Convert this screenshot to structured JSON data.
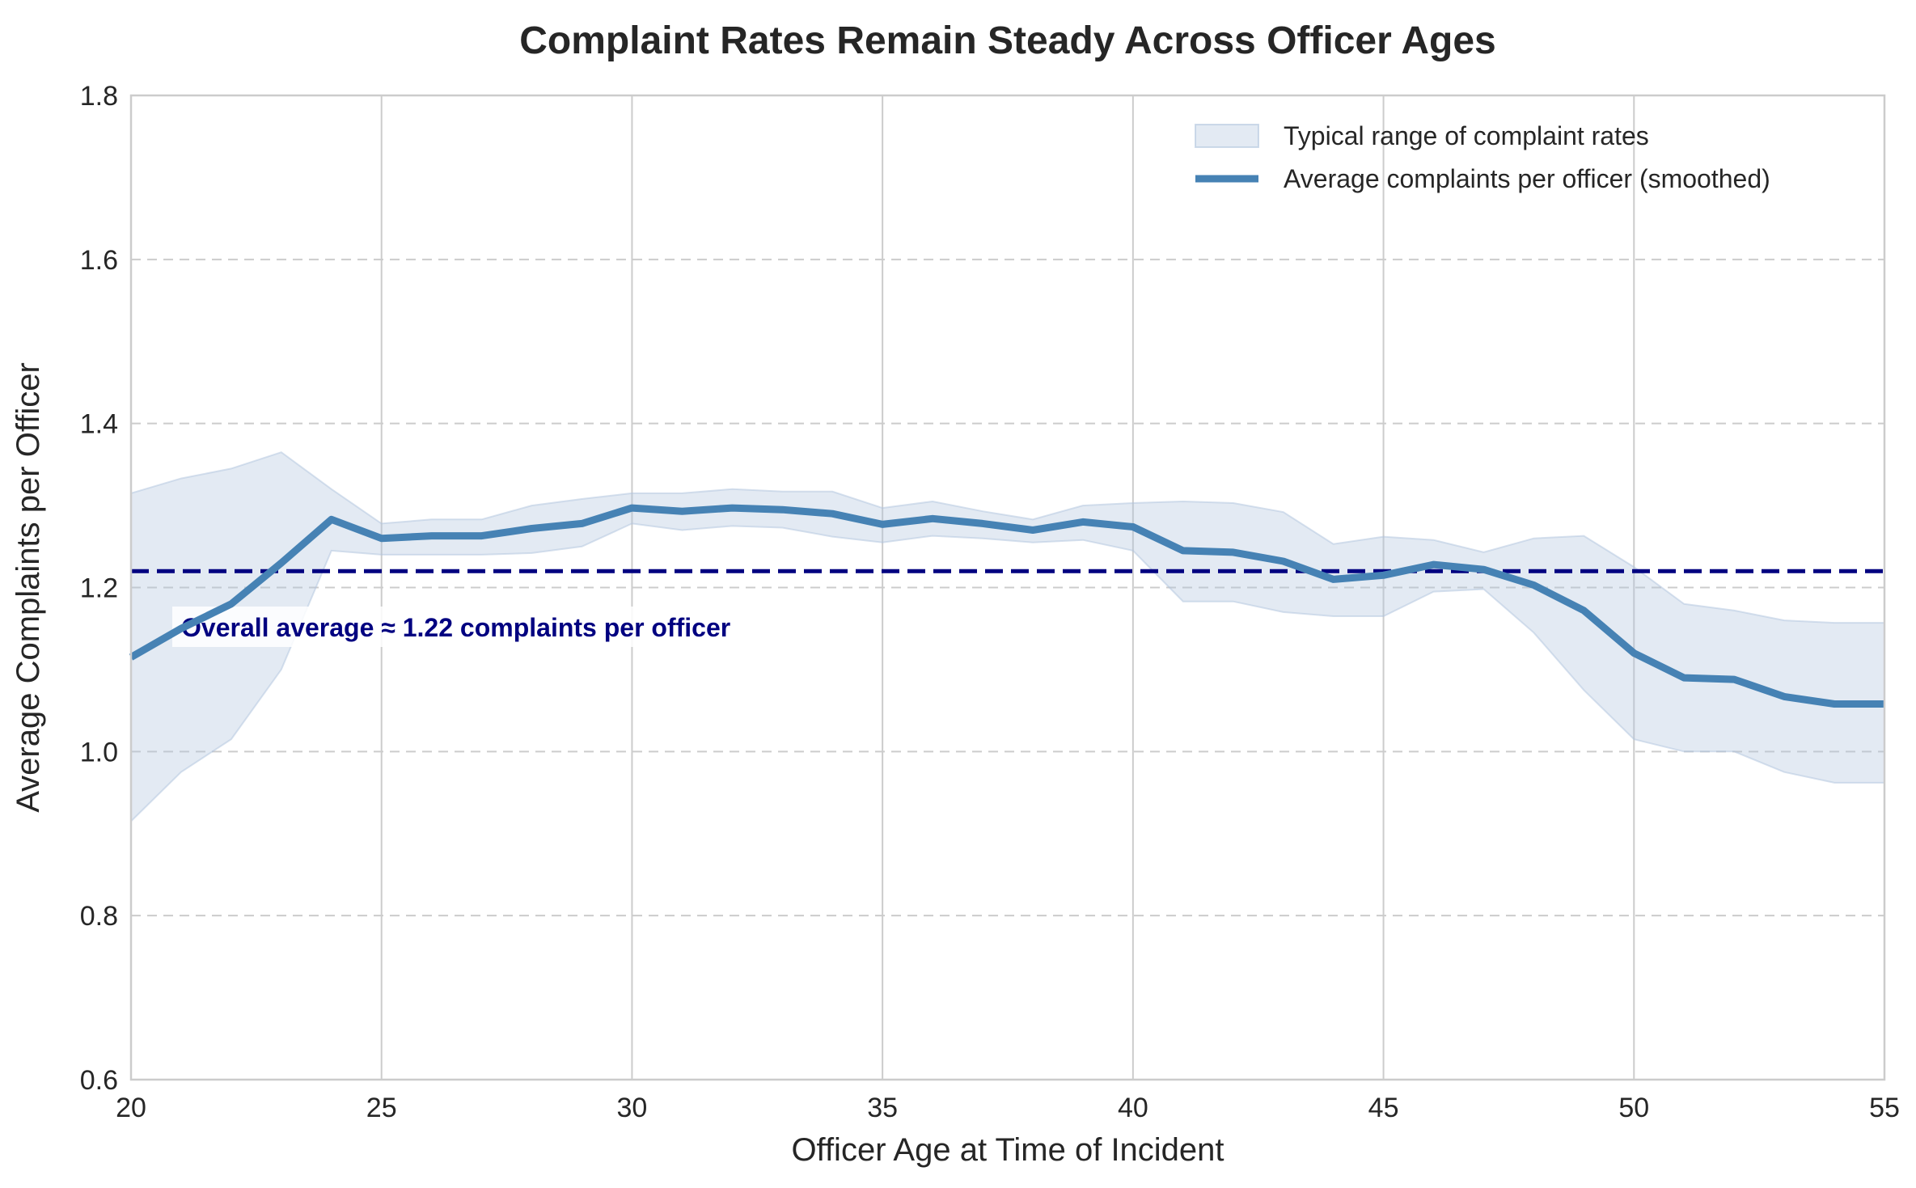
{
  "chart_data": {
    "type": "line",
    "title": "Complaint Rates Remain Steady Across Officer Ages",
    "xlabel": "Officer Age at Time of Incident",
    "ylabel": "Average Complaints per Officer",
    "xlim": [
      20,
      55
    ],
    "ylim": [
      0.6,
      1.8
    ],
    "xticks": [
      20,
      25,
      30,
      35,
      40,
      45,
      50,
      55
    ],
    "yticks": [
      0.6,
      0.8,
      1.0,
      1.2,
      1.4,
      1.6,
      1.8
    ],
    "xtick_labels": [
      "20",
      "25",
      "30",
      "35",
      "40",
      "45",
      "50",
      "55"
    ],
    "ytick_labels": [
      "0.6",
      "0.8",
      "1.0",
      "1.2",
      "1.4",
      "1.6",
      "1.8"
    ],
    "grid": "on",
    "legend_placement": "top-right",
    "legend": [
      "Typical range of complaint rates",
      "Average complaints per officer (smoothed)"
    ],
    "colors": {
      "line": "#4682b4",
      "band": "#b0c4de",
      "reference": "#000080",
      "grid": "#cccccc"
    },
    "x": [
      20,
      21,
      22,
      23,
      24,
      25,
      26,
      27,
      28,
      29,
      30,
      31,
      32,
      33,
      34,
      35,
      36,
      37,
      38,
      39,
      40,
      41,
      42,
      43,
      44,
      45,
      46,
      47,
      48,
      49,
      50,
      51,
      52,
      53,
      54,
      55
    ],
    "series": [
      {
        "name": "Average complaints per officer (smoothed)",
        "values": [
          1.115,
          1.15,
          1.18,
          1.23,
          1.283,
          1.26,
          1.263,
          1.263,
          1.272,
          1.278,
          1.297,
          1.293,
          1.297,
          1.295,
          1.29,
          1.277,
          1.284,
          1.278,
          1.27,
          1.28,
          1.274,
          1.245,
          1.243,
          1.232,
          1.21,
          1.215,
          1.228,
          1.222,
          1.203,
          1.172,
          1.12,
          1.09,
          1.088,
          1.067,
          1.058,
          1.058
        ]
      }
    ],
    "band": {
      "name": "Typical range of complaint rates",
      "lower": [
        0.915,
        0.975,
        1.015,
        1.1,
        1.245,
        1.24,
        1.24,
        1.24,
        1.242,
        1.25,
        1.278,
        1.27,
        1.275,
        1.273,
        1.262,
        1.255,
        1.263,
        1.26,
        1.255,
        1.258,
        1.245,
        1.183,
        1.183,
        1.17,
        1.165,
        1.165,
        1.195,
        1.198,
        1.145,
        1.075,
        1.015,
        1.0,
        1.0,
        0.975,
        0.962,
        0.962
      ],
      "upper": [
        1.315,
        1.333,
        1.345,
        1.365,
        1.32,
        1.278,
        1.283,
        1.283,
        1.3,
        1.308,
        1.315,
        1.315,
        1.32,
        1.317,
        1.317,
        1.297,
        1.305,
        1.293,
        1.283,
        1.3,
        1.303,
        1.305,
        1.303,
        1.292,
        1.253,
        1.262,
        1.258,
        1.243,
        1.26,
        1.263,
        1.225,
        1.18,
        1.172,
        1.16,
        1.157,
        1.157
      ]
    },
    "reference_line": {
      "value": 1.22,
      "label": "Overall average ≈ 1.22 complaints per officer"
    }
  }
}
